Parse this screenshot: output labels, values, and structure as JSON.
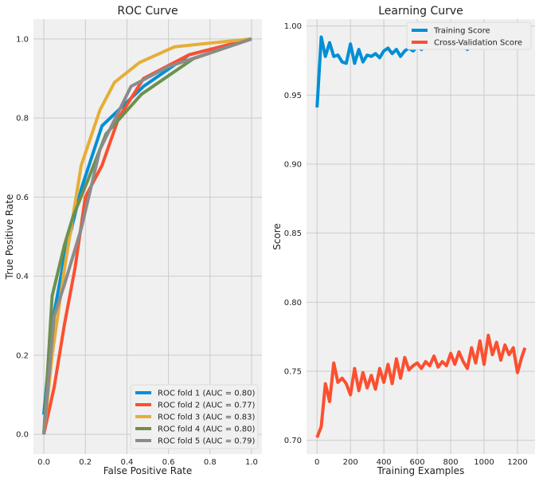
{
  "chart_data": [
    {
      "type": "line",
      "title": "ROC Curve",
      "xlabel": "False Positive Rate",
      "ylabel": "True Positive Rate",
      "xlim": [
        -0.05,
        1.05
      ],
      "ylim": [
        -0.05,
        1.05
      ],
      "xticks": [
        "0.0",
        "0.2",
        "0.4",
        "0.6",
        "0.8",
        "1.0"
      ],
      "yticks": [
        "0.0",
        "0.2",
        "0.4",
        "0.6",
        "0.8",
        "1.0"
      ],
      "grid": true,
      "legend": "lower-right",
      "series": [
        {
          "name": "ROC fold 1 (AUC = 0.80)",
          "color": "#008fd5",
          "x": [
            0.0,
            0.04,
            0.1,
            0.18,
            0.28,
            0.48,
            0.7,
            1.0
          ],
          "y": [
            0.05,
            0.28,
            0.45,
            0.62,
            0.78,
            0.88,
            0.96,
            1.0
          ]
        },
        {
          "name": "ROC fold 2 (AUC = 0.77)",
          "color": "#fc4f30",
          "x": [
            0.0,
            0.05,
            0.1,
            0.15,
            0.2,
            0.28,
            0.36,
            0.48,
            0.7,
            1.0
          ],
          "y": [
            0.0,
            0.12,
            0.28,
            0.42,
            0.6,
            0.68,
            0.8,
            0.9,
            0.96,
            1.0
          ]
        },
        {
          "name": "ROC fold 3 (AUC = 0.83)",
          "color": "#e5ae38",
          "x": [
            0.0,
            0.04,
            0.1,
            0.18,
            0.27,
            0.34,
            0.46,
            0.63,
            1.0
          ],
          "y": [
            0.0,
            0.2,
            0.42,
            0.68,
            0.82,
            0.89,
            0.94,
            0.98,
            1.0
          ]
        },
        {
          "name": "ROC fold 4 (AUC = 0.80)",
          "color": "#6d904f",
          "x": [
            0.0,
            0.04,
            0.1,
            0.14,
            0.21,
            0.3,
            0.47,
            0.72,
            1.0
          ],
          "y": [
            0.0,
            0.35,
            0.48,
            0.55,
            0.64,
            0.76,
            0.86,
            0.95,
            1.0
          ]
        },
        {
          "name": "ROC fold 5 (AUC = 0.79)",
          "color": "#8b8b8b",
          "x": [
            0.0,
            0.05,
            0.1,
            0.18,
            0.27,
            0.42,
            0.6,
            1.0
          ],
          "y": [
            0.0,
            0.3,
            0.38,
            0.52,
            0.72,
            0.88,
            0.93,
            1.0
          ]
        }
      ]
    },
    {
      "type": "line",
      "title": "Learning Curve",
      "xlabel": "Training Examples",
      "ylabel": "Score",
      "xlim": [
        -63,
        1305
      ],
      "ylim": [
        0.69,
        1.005
      ],
      "xticks": [
        "0",
        "200",
        "400",
        "600",
        "800",
        "1000",
        "1200"
      ],
      "yticks": [
        "0.70",
        "0.75",
        "0.80",
        "0.85",
        "0.90",
        "0.95",
        "1.00"
      ],
      "grid": true,
      "legend": "top-right",
      "series": [
        {
          "name": "Training Score",
          "color": "#008fd5",
          "x": [
            0,
            25,
            50,
            75,
            100,
            125,
            150,
            175,
            200,
            225,
            250,
            275,
            300,
            325,
            350,
            375,
            400,
            425,
            450,
            475,
            500,
            525,
            550,
            575,
            600,
            625,
            650,
            675,
            700,
            725,
            750,
            775,
            800,
            825,
            850,
            875,
            900,
            925,
            950,
            975,
            1000,
            1025,
            1050,
            1075,
            1100,
            1125,
            1150,
            1175,
            1200,
            1225,
            1245
          ],
          "y": [
            0.941,
            0.992,
            0.978,
            0.988,
            0.978,
            0.979,
            0.974,
            0.973,
            0.987,
            0.973,
            0.983,
            0.974,
            0.979,
            0.978,
            0.98,
            0.977,
            0.982,
            0.984,
            0.98,
            0.983,
            0.978,
            0.982,
            0.984,
            0.982,
            0.985,
            0.983,
            0.987,
            0.984,
            0.987,
            0.986,
            0.985,
            0.986,
            0.984,
            0.988,
            0.985,
            0.986,
            0.983,
            0.986,
            0.984,
            0.985,
            0.987,
            0.984,
            0.988,
            0.986,
            0.987,
            0.985,
            0.988,
            0.986,
            0.987,
            0.985,
            0.987
          ]
        },
        {
          "name": "Cross-Validation Score",
          "color": "#fc4f30",
          "x": [
            0,
            25,
            50,
            75,
            100,
            125,
            150,
            175,
            200,
            225,
            250,
            275,
            300,
            325,
            350,
            375,
            400,
            425,
            450,
            475,
            500,
            525,
            550,
            575,
            600,
            625,
            650,
            675,
            700,
            725,
            750,
            775,
            800,
            825,
            850,
            875,
            900,
            925,
            950,
            975,
            1000,
            1025,
            1050,
            1075,
            1100,
            1125,
            1150,
            1175,
            1200,
            1225,
            1245
          ],
          "y": [
            0.702,
            0.71,
            0.741,
            0.728,
            0.756,
            0.742,
            0.745,
            0.741,
            0.733,
            0.752,
            0.736,
            0.749,
            0.738,
            0.747,
            0.737,
            0.752,
            0.742,
            0.755,
            0.741,
            0.759,
            0.745,
            0.76,
            0.751,
            0.754,
            0.756,
            0.752,
            0.757,
            0.754,
            0.761,
            0.753,
            0.757,
            0.754,
            0.763,
            0.755,
            0.764,
            0.757,
            0.752,
            0.767,
            0.756,
            0.772,
            0.755,
            0.776,
            0.762,
            0.771,
            0.758,
            0.769,
            0.762,
            0.767,
            0.749,
            0.76,
            0.767
          ]
        }
      ]
    }
  ]
}
